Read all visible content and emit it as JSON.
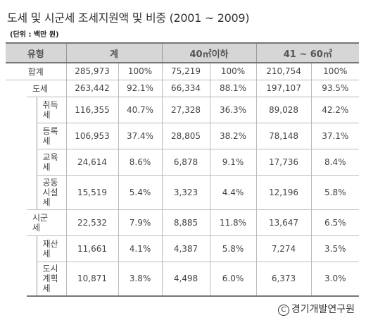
{
  "title": "도세 및 시군세 조세지원액 및 비중 (2001 ~ 2009)",
  "unit": "(단위 : 백만 원)",
  "headers": {
    "type": "유형",
    "total": "계",
    "under40": "40㎡이하",
    "range41_60": "41 ~ 60㎡"
  },
  "rows": [
    {
      "label": "합계",
      "level": 0,
      "v": [
        "285,973",
        "100%",
        "75,219",
        "100%",
        "210,754",
        "100%"
      ]
    },
    {
      "label": "도세",
      "level": 1,
      "v": [
        "263,442",
        "92.1%",
        "66,334",
        "88.1%",
        "197,107",
        "93.5%"
      ]
    },
    {
      "label": "취득세",
      "lines": [
        "취득",
        "세"
      ],
      "level": 2,
      "v": [
        "116,355",
        "40.7%",
        "27,328",
        "36.3%",
        "89,028",
        "42.2%"
      ]
    },
    {
      "label": "등록세",
      "lines": [
        "등록",
        "세"
      ],
      "level": 2,
      "v": [
        "106,953",
        "37.4%",
        "28,805",
        "38.2%",
        "78,148",
        "37.1%"
      ]
    },
    {
      "label": "교육세",
      "lines": [
        "교육",
        "세"
      ],
      "level": 2,
      "v": [
        "24,614",
        "8.6%",
        "6,878",
        "9.1%",
        "17,736",
        "8.4%"
      ]
    },
    {
      "label": "공동시설세",
      "lines": [
        "공동",
        "시설",
        "세"
      ],
      "level": 2,
      "v": [
        "15,519",
        "5.4%",
        "3,323",
        "4.4%",
        "12,196",
        "5.8%"
      ]
    },
    {
      "label": "시군세",
      "lines": [
        "시군",
        "세"
      ],
      "level": 1,
      "v": [
        "22,532",
        "7.9%",
        "8,885",
        "11.8%",
        "13,647",
        "6.5%"
      ]
    },
    {
      "label": "재산세",
      "lines": [
        "재산",
        "세"
      ],
      "level": 2,
      "v": [
        "11,661",
        "4.1%",
        "4,387",
        "5.8%",
        "7,274",
        "3.5%"
      ]
    },
    {
      "label": "도시계획세",
      "lines": [
        "도시",
        "계획",
        "세"
      ],
      "level": 2,
      "v": [
        "10,871",
        "3.8%",
        "4,498",
        "6.0%",
        "6,373",
        "3.0%"
      ]
    }
  ],
  "footer": "경기개발연구원",
  "copyright_symbol": "C"
}
